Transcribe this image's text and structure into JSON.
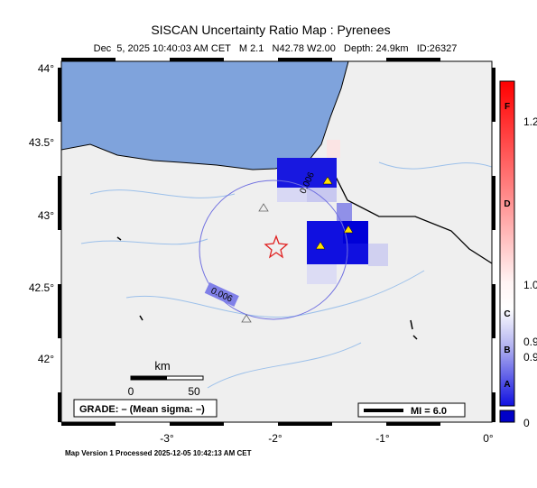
{
  "header": {
    "title": "SISCAN Uncertainty Ratio Map : Pyrenees",
    "subtitle": "Dec  5, 2025 10:40:03 AM CET   M 2.1   N42.78 W2.00   Depth: 24.9km   ID:26327"
  },
  "axes": {
    "lat_labels": [
      "44°",
      "43.5°",
      "43°",
      "42.5°",
      "42°"
    ],
    "lon_labels": [
      "-3°",
      "-2°",
      "-1°",
      "0°"
    ]
  },
  "map": {
    "contour_labels": [
      "0.006",
      "0.006"
    ],
    "scale": {
      "unit": "km",
      "start": "0",
      "end": "50"
    },
    "grade": "GRADE: – (Mean sigma: –)",
    "mi": "MI = 6.0"
  },
  "colorbar": {
    "grades": [
      "F",
      "D",
      "C",
      "B",
      "A"
    ],
    "labels": [
      "1.2",
      "1.0",
      "0.9",
      "0.9",
      "0"
    ]
  },
  "footer": "Map Version 1 Processed 2025-12-05 10:42:13 AM CET"
}
